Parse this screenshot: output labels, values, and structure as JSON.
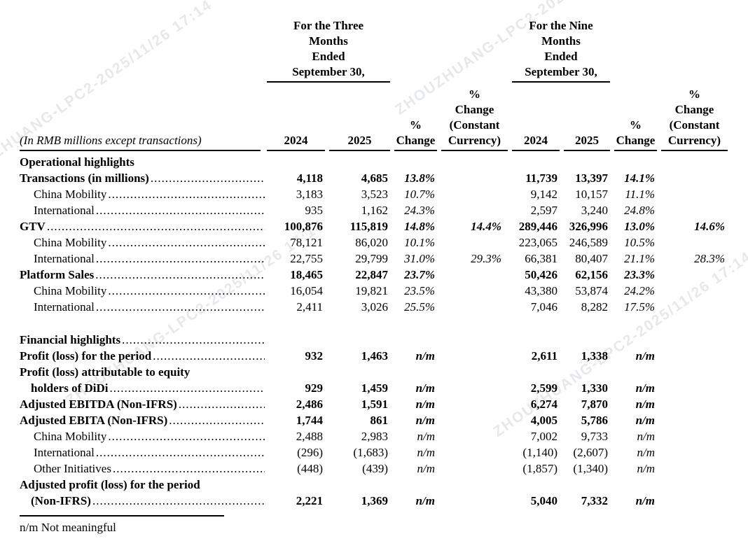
{
  "watermark": {
    "text": "ZHOUZHUANG-LPC2-2025/11/26 17:14",
    "color": "#c9cdd3"
  },
  "table": {
    "columns": {
      "three_months_group": "For the Three\nMonths\nEnded\nSeptember 30,",
      "nine_months_group": "For the Nine\nMonths\nEnded\nSeptember 30,",
      "year_2024": "2024",
      "year_2025": "2025",
      "pct_change": "%\nChange",
      "pct_change_constant": "%\nChange\n(Constant\nCurrency)",
      "row_label_note": "(In RMB millions except transactions)"
    },
    "rows": [
      {
        "label": "Operational highlights",
        "style": "section",
        "dots": false,
        "values": [
          "",
          "",
          "",
          "",
          "",
          "",
          "",
          ""
        ]
      },
      {
        "label": "Transactions (in millions)",
        "style": "bold",
        "dots": true,
        "values": [
          "4,118",
          "4,685",
          "13.8%",
          "",
          "11,739",
          "13,397",
          "14.1%",
          ""
        ]
      },
      {
        "label": "China Mobility",
        "style": "sub",
        "dots": true,
        "values": [
          "3,183",
          "3,523",
          "10.7%",
          "",
          "9,142",
          "10,157",
          "11.1%",
          ""
        ]
      },
      {
        "label": "International",
        "style": "sub",
        "dots": true,
        "values": [
          "935",
          "1,162",
          "24.3%",
          "",
          "2,597",
          "3,240",
          "24.8%",
          ""
        ]
      },
      {
        "label": "GTV",
        "style": "bold",
        "dots": true,
        "values": [
          "100,876",
          "115,819",
          "14.8%",
          "14.4%",
          "289,446",
          "326,996",
          "13.0%",
          "14.6%"
        ]
      },
      {
        "label": "China Mobility",
        "style": "sub",
        "dots": true,
        "values": [
          "78,121",
          "86,020",
          "10.1%",
          "",
          "223,065",
          "246,589",
          "10.5%",
          ""
        ]
      },
      {
        "label": "International",
        "style": "sub",
        "dots": true,
        "values": [
          "22,755",
          "29,799",
          "31.0%",
          "29.3%",
          "66,381",
          "80,407",
          "21.1%",
          "28.3%"
        ]
      },
      {
        "label": "Platform Sales",
        "style": "bold",
        "dots": true,
        "values": [
          "18,465",
          "22,847",
          "23.7%",
          "",
          "50,426",
          "62,156",
          "23.3%",
          ""
        ]
      },
      {
        "label": "China Mobility",
        "style": "sub",
        "dots": true,
        "values": [
          "16,054",
          "19,821",
          "23.5%",
          "",
          "43,380",
          "53,874",
          "24.2%",
          ""
        ]
      },
      {
        "label": "International",
        "style": "sub",
        "dots": true,
        "values": [
          "2,411",
          "3,026",
          "25.5%",
          "",
          "7,046",
          "8,282",
          "17.5%",
          ""
        ]
      },
      {
        "label": "",
        "style": "spacer",
        "dots": false,
        "values": [
          "",
          "",
          "",
          "",
          "",
          "",
          "",
          ""
        ]
      },
      {
        "label": "Financial highlights",
        "style": "bold",
        "dots": true,
        "values": [
          "",
          "",
          "",
          "",
          "",
          "",
          "",
          ""
        ]
      },
      {
        "label": "Profit (loss) for the period",
        "style": "bold",
        "dots": true,
        "values": [
          "932",
          "1,463",
          "n/m",
          "",
          "2,611",
          "1,338",
          "n/m",
          ""
        ]
      },
      {
        "label": "Profit (loss) attributable to equity",
        "style": "bold",
        "dots": false,
        "values": [
          "",
          "",
          "",
          "",
          "",
          "",
          "",
          ""
        ]
      },
      {
        "label": "holders of DiDi",
        "style": "bold-cont",
        "dots": true,
        "values": [
          "929",
          "1,459",
          "n/m",
          "",
          "2,599",
          "1,330",
          "n/m",
          ""
        ]
      },
      {
        "label": "Adjusted EBITDA (Non-IFRS)",
        "style": "bold",
        "dots": true,
        "values": [
          "2,486",
          "1,591",
          "n/m",
          "",
          "6,274",
          "7,870",
          "n/m",
          ""
        ]
      },
      {
        "label": "Adjusted EBITA (Non-IFRS)",
        "style": "bold",
        "dots": true,
        "values": [
          "1,744",
          "861",
          "n/m",
          "",
          "4,005",
          "5,786",
          "n/m",
          ""
        ]
      },
      {
        "label": "China Mobility",
        "style": "sub",
        "dots": true,
        "values": [
          "2,488",
          "2,983",
          "n/m",
          "",
          "7,002",
          "9,733",
          "n/m",
          ""
        ]
      },
      {
        "label": "International",
        "style": "sub",
        "dots": true,
        "values": [
          "(296)",
          "(1,683)",
          "n/m",
          "",
          "(1,140)",
          "(2,607)",
          "n/m",
          ""
        ]
      },
      {
        "label": "Other Initiatives",
        "style": "sub",
        "dots": true,
        "values": [
          "(448)",
          "(439)",
          "n/m",
          "",
          "(1,857)",
          "(1,340)",
          "n/m",
          ""
        ]
      },
      {
        "label": "Adjusted profit (loss) for the period",
        "style": "bold",
        "dots": false,
        "values": [
          "",
          "",
          "",
          "",
          "",
          "",
          "",
          ""
        ]
      },
      {
        "label": "(Non-IFRS)",
        "style": "bold-cont",
        "dots": true,
        "values": [
          "2,221",
          "1,369",
          "n/m",
          "",
          "5,040",
          "7,332",
          "n/m",
          ""
        ]
      }
    ]
  },
  "footnote": {
    "text": "n/m Not meaningful"
  }
}
